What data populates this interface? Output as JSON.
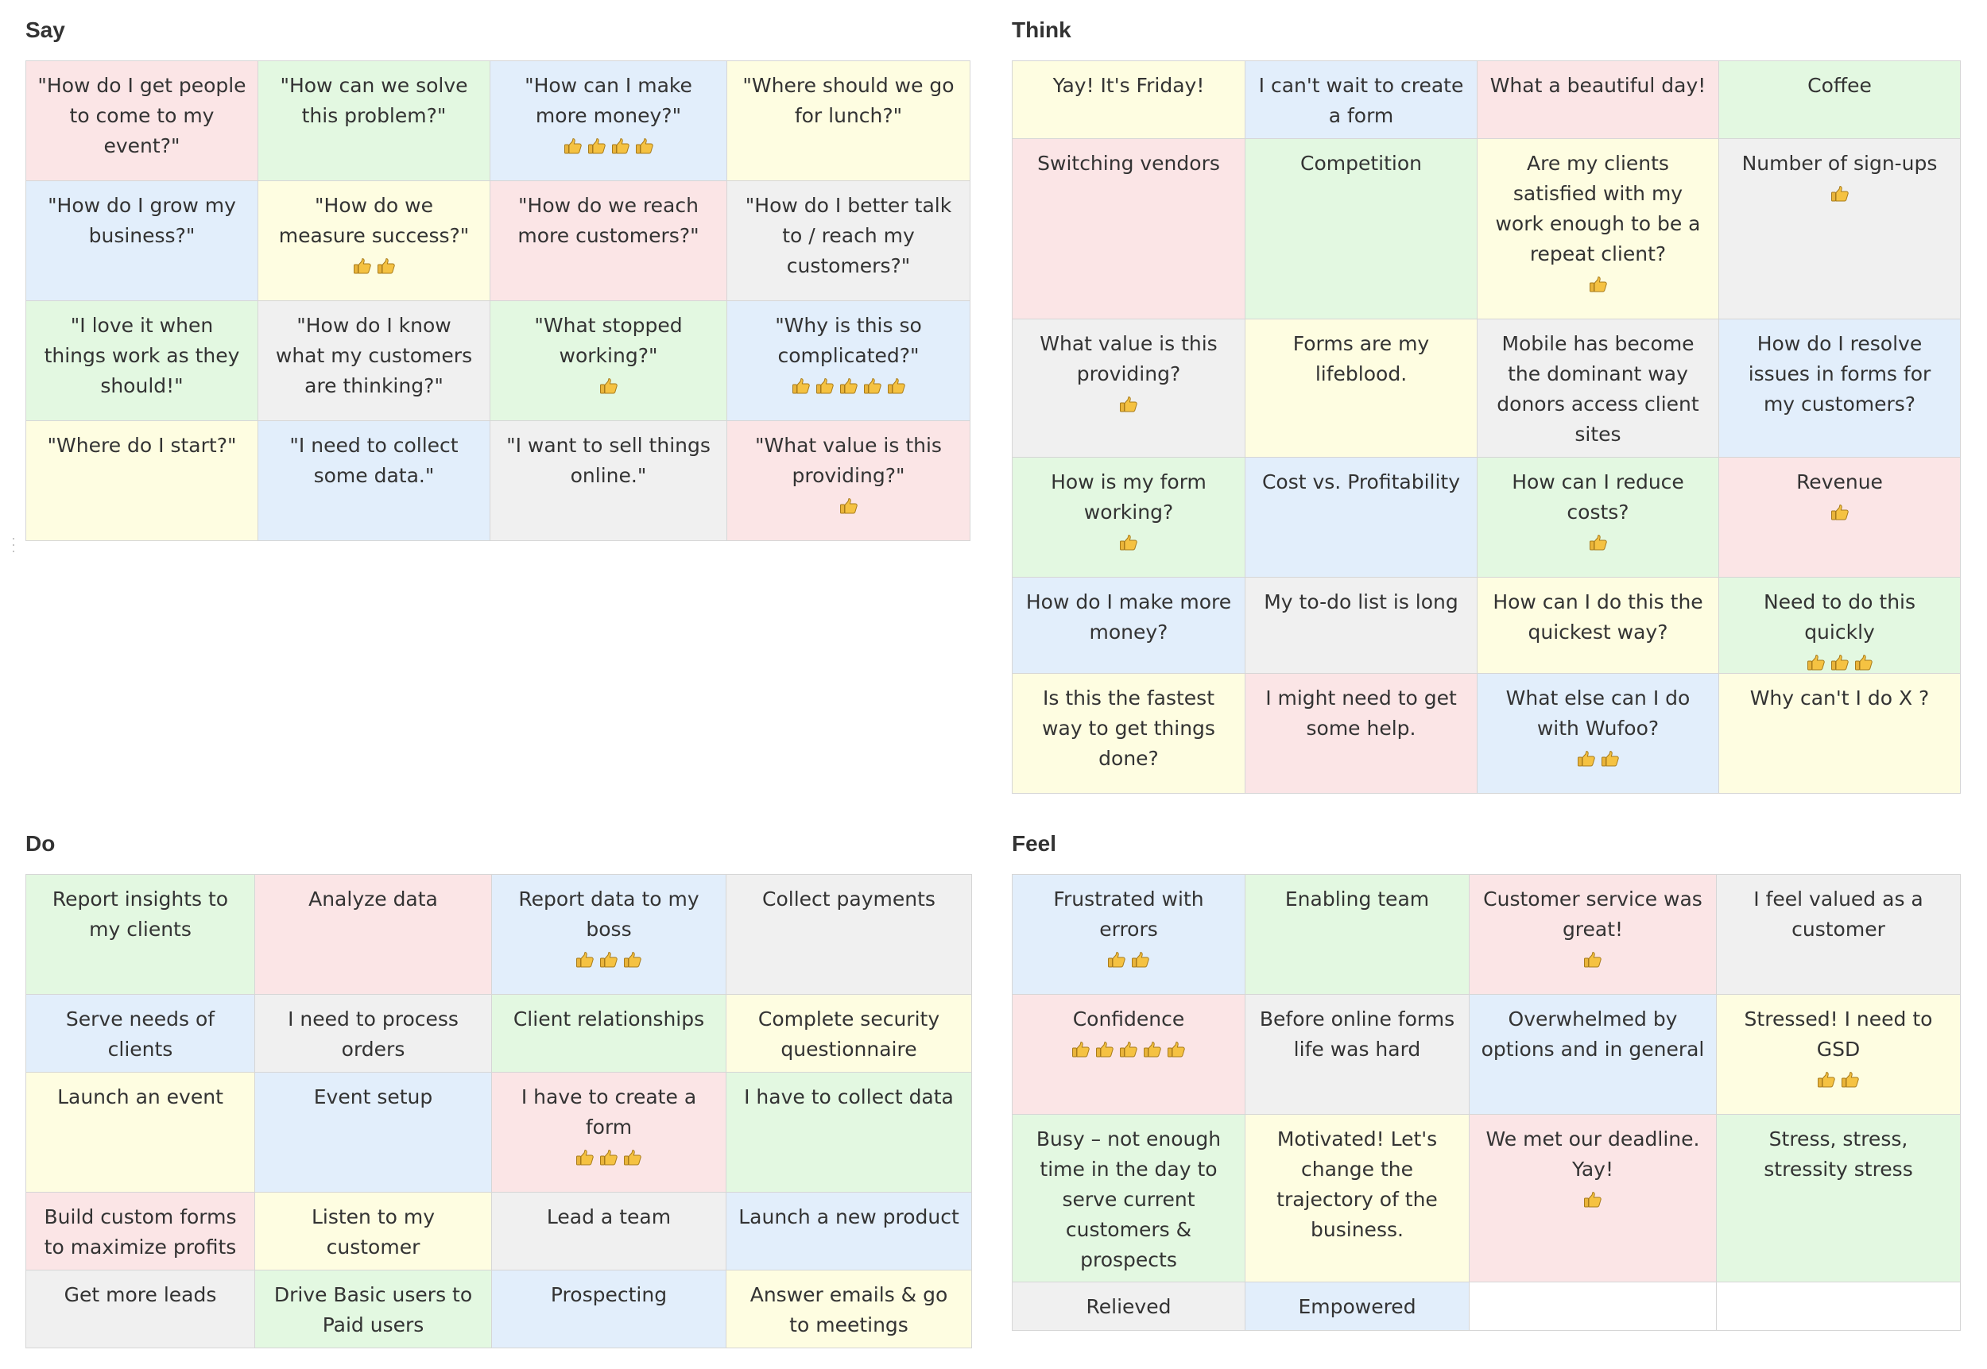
{
  "colors": {
    "pink": "#fbe5e6",
    "green": "#e3f8e1",
    "blue": "#e2eefb",
    "yellow": "#fefde1",
    "gray": "#f0f0f0",
    "thumb": "#f5c242"
  },
  "icons": {
    "vote": "thumbs-up-icon",
    "handle": "drag-handle-icon"
  },
  "quadrants": [
    {
      "title": "Say",
      "rows": [
        [
          {
            "text": "\"How do I get people to come to my event?\"",
            "color": "pink",
            "votes": 0
          },
          {
            "text": "\"How can we solve this problem?\"",
            "color": "green",
            "votes": 0
          },
          {
            "text": "\"How can I make more money?\"",
            "color": "blue",
            "votes": 4
          },
          {
            "text": "\"Where should we go for lunch?\"",
            "color": "yellow",
            "votes": 0
          }
        ],
        [
          {
            "text": "\"How do I grow my business?\"",
            "color": "blue",
            "votes": 0
          },
          {
            "text": "\"How do we measure success?\"",
            "color": "yellow",
            "votes": 2
          },
          {
            "text": "\"How do we reach more customers?\"",
            "color": "pink",
            "votes": 0
          },
          {
            "text": "\"How do I better talk to / reach my customers?\"",
            "color": "gray",
            "votes": 0
          }
        ],
        [
          {
            "text": "\"I love it when things work as they should!\"",
            "color": "green",
            "votes": 0
          },
          {
            "text": "\"How do I know what my customers are thinking?\"",
            "color": "gray",
            "votes": 0
          },
          {
            "text": "\"What stopped working?\"",
            "color": "green",
            "votes": 1
          },
          {
            "text": "\"Why is this so complicated?\"",
            "color": "blue",
            "votes": 5
          }
        ],
        [
          {
            "text": "\"Where do I start?\"",
            "color": "yellow",
            "votes": 0
          },
          {
            "text": "\"I need to collect some data.\"",
            "color": "blue",
            "votes": 0
          },
          {
            "text": "\"I want to sell things online.\"",
            "color": "gray",
            "votes": 0
          },
          {
            "text": "\"What value is this providing?\"",
            "color": "pink",
            "votes": 1
          }
        ]
      ]
    },
    {
      "title": "Think",
      "rows": [
        [
          {
            "text": "Yay! It's Friday!",
            "color": "yellow",
            "votes": 0
          },
          {
            "text": "I can't wait to create a form",
            "color": "blue",
            "votes": 0
          },
          {
            "text": "What a beautiful day!",
            "color": "pink",
            "votes": 0
          },
          {
            "text": "Coffee",
            "color": "green",
            "votes": 0
          }
        ],
        [
          {
            "text": "Switching vendors",
            "color": "pink",
            "votes": 0
          },
          {
            "text": "Competition",
            "color": "green",
            "votes": 0
          },
          {
            "text": "Are my clients satisfied with my work enough to be a repeat client?",
            "color": "yellow",
            "votes": 1
          },
          {
            "text": "Number of sign-ups",
            "color": "gray",
            "votes": 1
          }
        ],
        [
          {
            "text": "What value is this providing?",
            "color": "gray",
            "votes": 1
          },
          {
            "text": "Forms are my lifeblood.",
            "color": "yellow",
            "votes": 0
          },
          {
            "text": "Mobile has become the dominant way donors access client sites",
            "color": "gray",
            "votes": 0
          },
          {
            "text": "How do I resolve issues in forms for my customers?",
            "color": "blue",
            "votes": 0
          }
        ],
        [
          {
            "text": "How is my form working?",
            "color": "green",
            "votes": 1
          },
          {
            "text": "Cost vs. Profitability",
            "color": "blue",
            "votes": 0
          },
          {
            "text": "How can I reduce costs?",
            "color": "green",
            "votes": 1
          },
          {
            "text": "Revenue",
            "color": "pink",
            "votes": 1
          }
        ],
        [
          {
            "text": "How do I make more money?",
            "color": "blue",
            "votes": 0
          },
          {
            "text": "My to-do list is long",
            "color": "gray",
            "votes": 0
          },
          {
            "text": "How can I do this the quickest way?",
            "color": "yellow",
            "votes": 0
          },
          {
            "text": "Need to do this quickly",
            "color": "green",
            "votes": 3
          }
        ],
        [
          {
            "text": "Is this the fastest way to get things done?",
            "color": "yellow",
            "votes": 0
          },
          {
            "text": "I might need to get some help.",
            "color": "pink",
            "votes": 0
          },
          {
            "text": "What else can I do with Wufoo?",
            "color": "blue",
            "votes": 2
          },
          {
            "text": "Why can't I do X ?",
            "color": "yellow",
            "votes": 0
          }
        ]
      ]
    },
    {
      "title": "Do",
      "rows": [
        [
          {
            "text": "Report insights to my clients",
            "color": "green",
            "votes": 0
          },
          {
            "text": "Analyze data",
            "color": "pink",
            "votes": 0
          },
          {
            "text": "Report data to my boss",
            "color": "blue",
            "votes": 3
          },
          {
            "text": "Collect payments",
            "color": "gray",
            "votes": 0
          }
        ],
        [
          {
            "text": "Serve needs of clients",
            "color": "blue",
            "votes": 0
          },
          {
            "text": "I need to process orders",
            "color": "gray",
            "votes": 0
          },
          {
            "text": "Client relationships",
            "color": "green",
            "votes": 0
          },
          {
            "text": "Complete security questionnaire",
            "color": "yellow",
            "votes": 0
          }
        ],
        [
          {
            "text": "Launch an event",
            "color": "yellow",
            "votes": 0
          },
          {
            "text": "Event setup",
            "color": "blue",
            "votes": 0
          },
          {
            "text": "I have to create a form",
            "color": "pink",
            "votes": 3
          },
          {
            "text": "I have to collect data",
            "color": "green",
            "votes": 0
          }
        ],
        [
          {
            "text": "Build custom forms to maximize profits",
            "color": "pink",
            "votes": 0
          },
          {
            "text": "Listen to my customer",
            "color": "yellow",
            "votes": 0
          },
          {
            "text": "Lead a team",
            "color": "gray",
            "votes": 0
          },
          {
            "text": "Launch a new product",
            "color": "blue",
            "votes": 0
          }
        ],
        [
          {
            "text": "Get more leads",
            "color": "gray",
            "votes": 0
          },
          {
            "text": "Drive Basic users to Paid users",
            "color": "green",
            "votes": 0
          },
          {
            "text": "Prospecting",
            "color": "blue",
            "votes": 0
          },
          {
            "text": "Answer emails & go to meetings",
            "color": "yellow",
            "votes": 0
          }
        ]
      ]
    },
    {
      "title": "Feel",
      "rows": [
        [
          {
            "text": "Frustrated with errors",
            "color": "blue",
            "votes": 2
          },
          {
            "text": "Enabling team",
            "color": "green",
            "votes": 0
          },
          {
            "text": "Customer service was great!",
            "color": "pink",
            "votes": 1
          },
          {
            "text": "I feel valued as a customer",
            "color": "gray",
            "votes": 0
          }
        ],
        [
          {
            "text": "Confidence",
            "color": "pink",
            "votes": 5
          },
          {
            "text": "Before online forms life was hard",
            "color": "gray",
            "votes": 0
          },
          {
            "text": "Overwhelmed by options and in general",
            "color": "blue",
            "votes": 0
          },
          {
            "text": "Stressed! I need to GSD",
            "color": "yellow",
            "votes": 2
          }
        ],
        [
          {
            "text": "Busy – not enough time in the day to serve current customers & prospects",
            "color": "green",
            "votes": 0
          },
          {
            "text": "Motivated! Let's change the trajectory of the business.",
            "color": "yellow",
            "votes": 0
          },
          {
            "text": "We met our deadline. Yay!",
            "color": "pink",
            "votes": 1
          },
          {
            "text": "Stress, stress, stressity stress",
            "color": "green",
            "votes": 0
          }
        ],
        [
          {
            "text": "Relieved",
            "color": "gray",
            "votes": 0
          },
          {
            "text": "Empowered",
            "color": "blue",
            "votes": 0
          },
          {
            "text": "",
            "color": "white",
            "votes": 0
          },
          {
            "text": "",
            "color": "white",
            "votes": 0
          }
        ]
      ]
    }
  ]
}
